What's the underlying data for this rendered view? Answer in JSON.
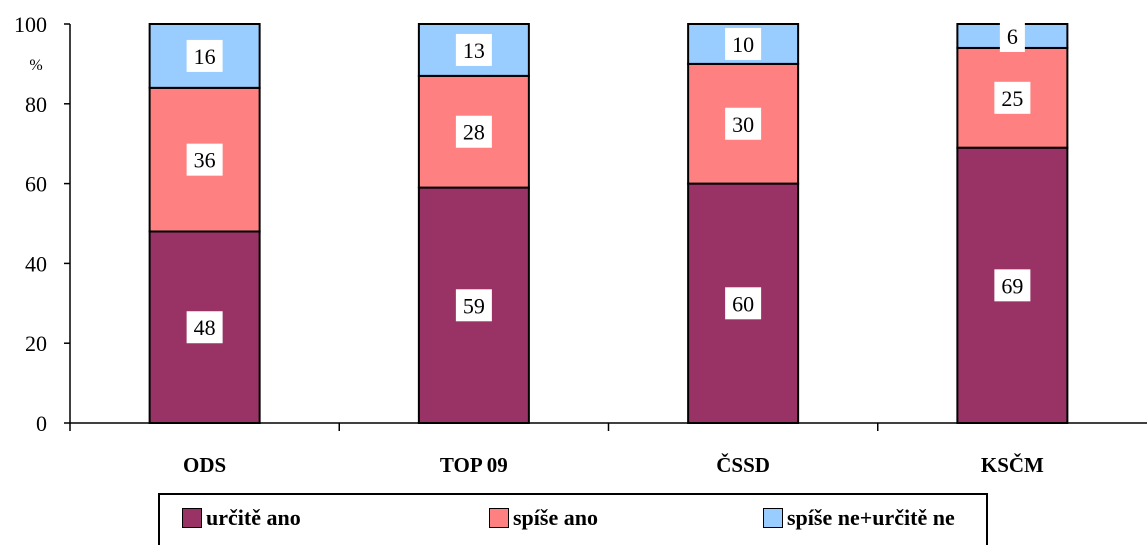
{
  "chart_data": {
    "type": "bar",
    "stacked": true,
    "categories": [
      "ODS",
      "TOP 09",
      "ČSSD",
      "KSČM"
    ],
    "series": [
      {
        "name": "určitě ano",
        "color": "#993366",
        "values": [
          48,
          59,
          60,
          69
        ]
      },
      {
        "name": "spíše ano",
        "color": "#ff8080",
        "values": [
          36,
          28,
          30,
          25
        ]
      },
      {
        "name": "spíše ne+určitě ne",
        "color": "#99ccff",
        "values": [
          16,
          13,
          10,
          6
        ]
      }
    ],
    "ylim": [
      0,
      100
    ],
    "yticks": [
      0,
      20,
      40,
      60,
      80,
      100
    ],
    "ylabel": "%",
    "grid": false,
    "legend_position": "bottom"
  }
}
